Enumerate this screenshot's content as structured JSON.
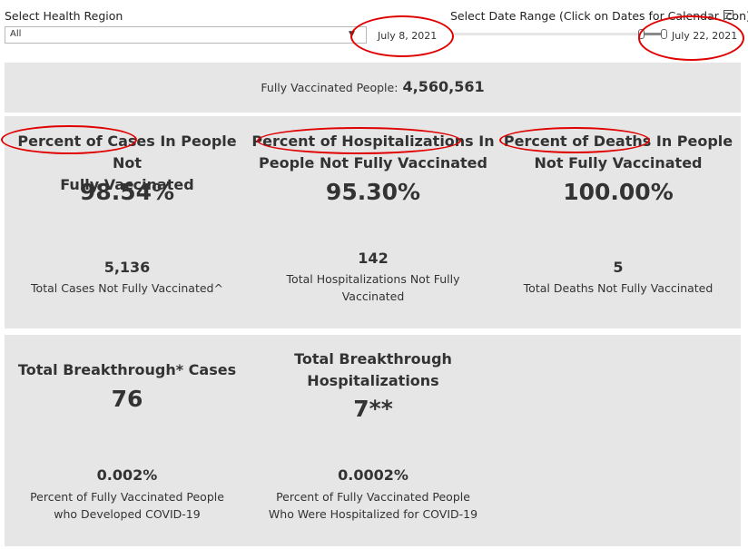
{
  "filters": {
    "region_label": "Select Health Region",
    "region_value": "All",
    "date_range_label": "Select Date Range (Click on Dates for Calendar Icon)",
    "start_date": "July 8, 2021",
    "end_date": "July 22, 2021"
  },
  "summary": {
    "fully_vaccinated_label": "Fully Vaccinated People:",
    "fully_vaccinated_value": "4,560,561"
  },
  "metrics": {
    "cases": {
      "title_line1": "Percent of Cases In People Not",
      "title_line2": "Fully Vaccinated",
      "percent": "98.54%",
      "count": "5,136",
      "caption": "Total Cases Not Fully Vaccinated^"
    },
    "hospitalizations": {
      "title_line1": "Percent of Hospitalizations In",
      "title_line2": "People Not Fully Vaccinated",
      "percent": "95.30%",
      "count": "142",
      "caption_line1": "Total Hospitalizations Not Fully",
      "caption_line2": "Vaccinated"
    },
    "deaths": {
      "title_line1": "Percent of Deaths In People",
      "title_line2": "Not Fully Vaccinated",
      "percent": "100.00%",
      "count": "5",
      "caption": "Total Deaths Not Fully Vaccinated"
    }
  },
  "breakthrough": {
    "cases": {
      "title": "Total Breakthrough* Cases",
      "value": "76",
      "percent": "0.002%",
      "caption_line1": "Percent of Fully Vaccinated People",
      "caption_line2": "who Developed COVID-19"
    },
    "hospitalizations": {
      "title_line1": "Total Breakthrough",
      "title_line2": "Hospitalizations",
      "value": "7**",
      "percent": "0.0002%",
      "caption_line1": "Percent of Fully Vaccinated People",
      "caption_line2": "Who Were Hospitalized for COVID-19"
    }
  },
  "colors": {
    "panel": "#e6e6e6",
    "annotation": "#e00000",
    "text": "#333333"
  }
}
